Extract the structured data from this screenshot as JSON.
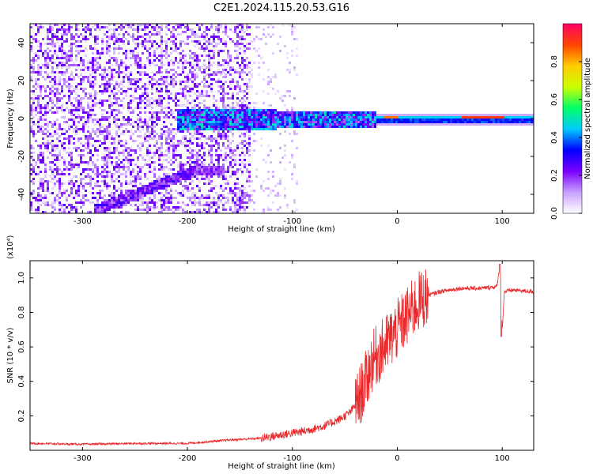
{
  "title": "C2E1.2024.115.20.53.G16",
  "chart_data": [
    {
      "type": "heatmap",
      "xlabel": "Height of straight line (km)",
      "ylabel": "Frequency (Hz)",
      "xlim": [
        -350,
        130
      ],
      "ylim": [
        -50,
        50
      ],
      "xticks": [
        -300,
        -200,
        -100,
        0,
        100
      ],
      "yticks": [
        -40,
        -20,
        0,
        20,
        40
      ],
      "colorbar": {
        "label": "Normalized spectral amplitude",
        "range": [
          0,
          1
        ],
        "ticks": [
          0.0,
          0.2,
          0.4,
          0.6,
          0.8
        ],
        "colors": [
          "#ffffff",
          "#c8a0ff",
          "#7a00ff",
          "#0000ff",
          "#00ccff",
          "#00ff66",
          "#ccff00",
          "#ffcc00",
          "#ff4400",
          "#ff0066"
        ]
      },
      "features": [
        {
          "x_range": [
            -350,
            -140
          ],
          "y_range": [
            -50,
            50
          ],
          "amplitude": 0.15
        },
        {
          "x_range": [
            -280,
            -190
          ],
          "y_range": [
            -45,
            -28
          ],
          "amplitude": 0.2
        },
        {
          "x_range": [
            -210,
            -20
          ],
          "y_range": [
            -6,
            6
          ],
          "amplitude": 0.35
        },
        {
          "x_range": [
            -20,
            130
          ],
          "y_range": [
            -2,
            2
          ],
          "amplitude": 0.9
        }
      ]
    },
    {
      "type": "line",
      "xlabel": "Height of straight line (km)",
      "ylabel": "SNR (10 * v/v)",
      "y_multiplier": "(x10⁴)",
      "xlim": [
        -350,
        130
      ],
      "ylim": [
        0,
        1.1
      ],
      "xticks": [
        -300,
        -200,
        -100,
        0,
        100
      ],
      "yticks": [
        0.2,
        0.4,
        0.6,
        0.8,
        1.0
      ],
      "color": "#e8282a",
      "series": [
        {
          "x": [
            -350,
            -300,
            -250,
            -200,
            -160,
            -130,
            -110,
            -90,
            -70,
            -55,
            -45,
            -38,
            -30,
            -25,
            -20,
            -15,
            -10,
            -5,
            0,
            10,
            20,
            30,
            40,
            60,
            80,
            95,
            98,
            100,
            102,
            110,
            130
          ],
          "y": [
            0.04,
            0.035,
            0.04,
            0.04,
            0.06,
            0.07,
            0.09,
            0.11,
            0.14,
            0.18,
            0.22,
            0.28,
            0.4,
            0.5,
            0.55,
            0.58,
            0.62,
            0.66,
            0.7,
            0.78,
            0.86,
            0.9,
            0.92,
            0.94,
            0.94,
            0.95,
            1.08,
            0.7,
            0.92,
            0.93,
            0.92
          ]
        }
      ]
    }
  ]
}
